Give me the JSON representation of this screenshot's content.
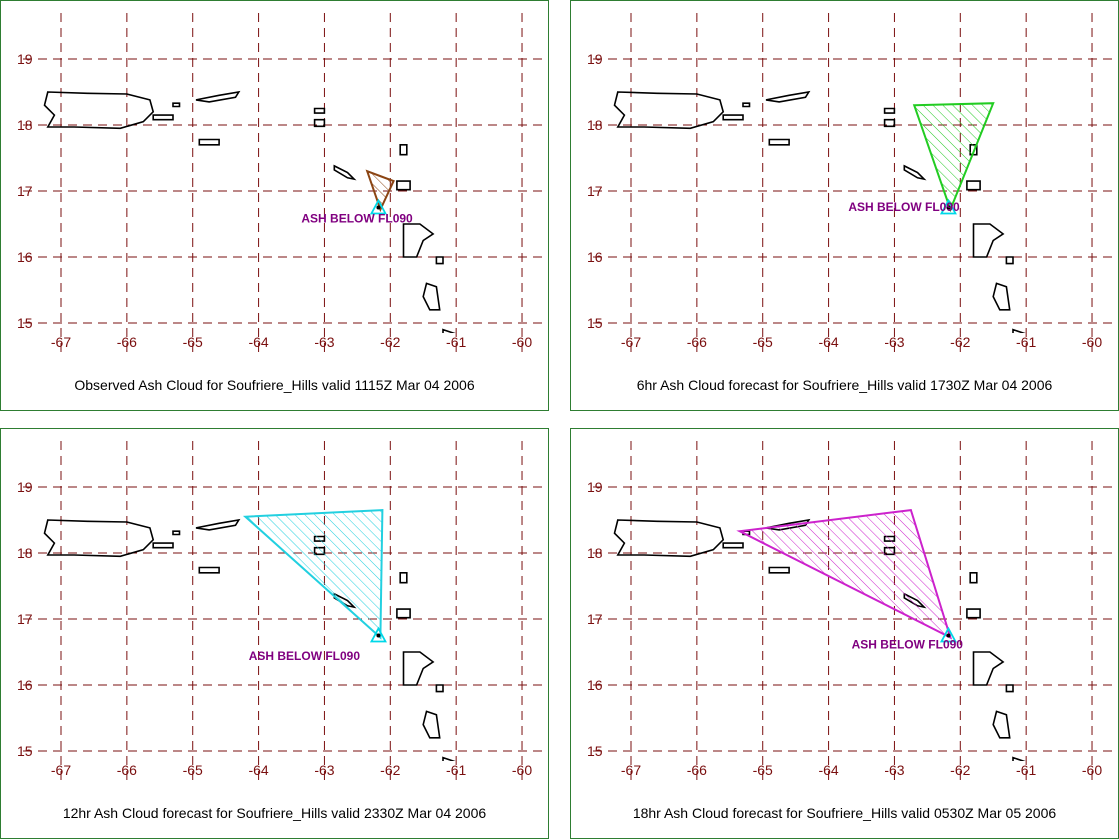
{
  "axis": {
    "lon_ticks": [
      "-67",
      "-66",
      "-65",
      "-64",
      "-63",
      "-62",
      "-61",
      "-60"
    ],
    "lat_ticks": [
      "19",
      "18",
      "17",
      "16",
      "15"
    ],
    "lon_range": [
      -67.5,
      -59.6
    ],
    "lat_range": [
      14.6,
      19.7
    ]
  },
  "colors": {
    "grid": "#7a0f0f",
    "coast": "#000000",
    "volcano": "#00d8e8",
    "panel_border": "#2e7d32"
  },
  "volcano": {
    "name": "Soufriere_Hills",
    "lon": -62.18,
    "lat": 16.72
  },
  "panels": [
    {
      "caption": "Observed Ash Cloud for Soufriere_Hills valid 1115Z Mar 04 2006",
      "ash_label": "ASH BELOW FL090",
      "label_anchor": {
        "lon": -63.35,
        "lat": 16.52
      },
      "cloud_color": "#8b4513",
      "cloud_polygon": [
        [
          -62.35,
          17.3
        ],
        [
          -61.95,
          17.15
        ],
        [
          -62.15,
          16.72
        ]
      ]
    },
    {
      "caption": "6hr Ash Cloud forecast for Soufriere_Hills valid 1730Z Mar 04 2006",
      "ash_label": "ASH BELOW FL090",
      "label_anchor": {
        "lon": -63.7,
        "lat": 16.7
      },
      "cloud_color": "#22cc22",
      "cloud_polygon": [
        [
          -62.7,
          18.3
        ],
        [
          -61.5,
          18.33
        ],
        [
          -62.15,
          16.72
        ]
      ]
    },
    {
      "caption": "12hr Ash Cloud forecast for Soufriere_Hills valid 2330Z Mar 04 2006",
      "ash_label": "ASH BELOW FL090",
      "label_anchor": {
        "lon": -64.15,
        "lat": 16.38
      },
      "cloud_color": "#22d0e0",
      "cloud_polygon": [
        [
          -64.2,
          18.55
        ],
        [
          -62.12,
          18.65
        ],
        [
          -62.15,
          16.72
        ]
      ]
    },
    {
      "caption": "18hr Ash Cloud forecast for Soufriere_Hills valid 0530Z Mar 05 2006",
      "ash_label": "ASH BELOW FL090",
      "label_anchor": {
        "lon": -63.65,
        "lat": 16.55
      },
      "cloud_color": "#cc22cc",
      "cloud_polygon": [
        [
          -65.35,
          18.33
        ],
        [
          -62.75,
          18.65
        ],
        [
          -62.15,
          16.72
        ]
      ]
    }
  ]
}
